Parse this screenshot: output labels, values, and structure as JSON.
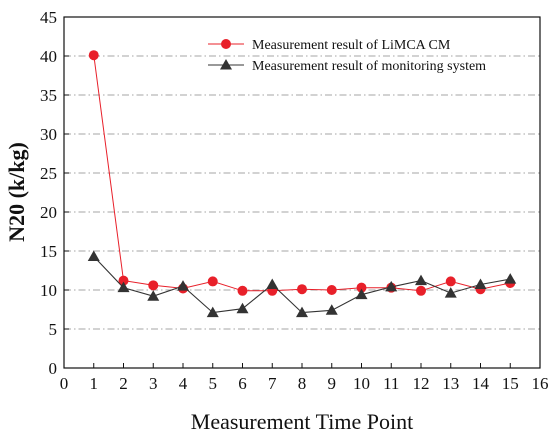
{
  "chart_data": {
    "type": "line",
    "title": "",
    "xlabel": "Measurement Time Point",
    "ylabel": "N20 (k/kg)",
    "xlim": [
      0,
      16
    ],
    "ylim": [
      0,
      45
    ],
    "xticks": [
      0,
      1,
      2,
      3,
      4,
      5,
      6,
      7,
      8,
      9,
      10,
      11,
      12,
      13,
      14,
      15,
      16
    ],
    "yticks": [
      0,
      5,
      10,
      15,
      20,
      25,
      30,
      35,
      40,
      45
    ],
    "grid": "horizontal dash-dot",
    "legend_position": "top-right",
    "x": [
      1,
      2,
      3,
      4,
      5,
      6,
      7,
      8,
      9,
      10,
      11,
      12,
      13,
      14,
      15
    ],
    "series": [
      {
        "name": "Measurement result of LiMCA CM",
        "color": "#e8202a",
        "marker": "circle",
        "values": [
          40.1,
          11.2,
          10.6,
          10.2,
          11.1,
          9.9,
          9.9,
          10.1,
          10.0,
          10.3,
          10.3,
          9.9,
          11.1,
          10.1,
          10.9
        ]
      },
      {
        "name": "Measurement result of monitoring system",
        "color": "#333333",
        "marker": "triangle",
        "values": [
          14.3,
          10.3,
          9.2,
          10.5,
          7.1,
          7.6,
          10.7,
          7.1,
          7.4,
          9.4,
          10.4,
          11.2,
          9.6,
          10.7,
          11.4
        ]
      }
    ]
  }
}
